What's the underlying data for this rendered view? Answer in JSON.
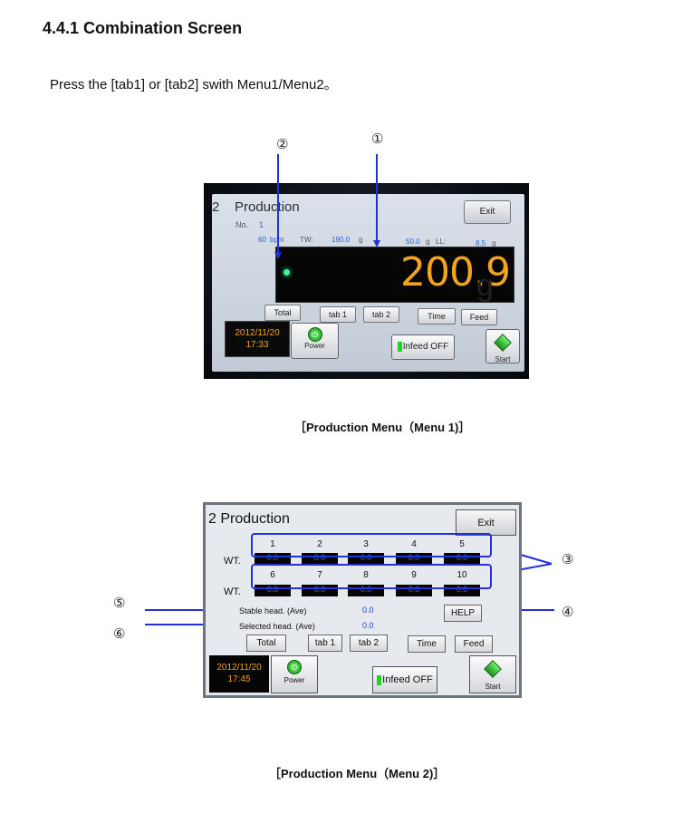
{
  "heading": "4.4.1 Combination Screen",
  "intro": "Press the [tab1] or [tab2] swith Menu1/Menu2。",
  "markers": {
    "m1": "①",
    "m2": "②",
    "m3": "③",
    "m4": "④",
    "m5": "⑤",
    "m6": "⑥"
  },
  "photo": {
    "title_num": "2",
    "title": "Production",
    "exit": "Exit",
    "no_label": "No.",
    "no_value": "1",
    "bpm_value": "60",
    "bpm_unit": "bpm",
    "tw_label": "TW:",
    "tw_value": "190.0",
    "tw_unit": "g",
    "mid_value": "50.0",
    "mid_unit": "g",
    "ll_label": "LL:",
    "ll_value": "8.5",
    "ll_unit": "g",
    "weight": "200.9",
    "weight_unit": "g",
    "buttons": {
      "total": "Total",
      "tab1": "tab 1",
      "tab2": "tab 2",
      "time": "Time",
      "feed": "Feed"
    },
    "date": "2012/11/20",
    "time": "17:33",
    "power": "Power",
    "infeed": "Infeed OFF",
    "start": "Start"
  },
  "caption1": "［Production Menu（Menu 1)］",
  "screen2": {
    "title": "2 Production",
    "exit": "Exit",
    "heads_row1": [
      "1",
      "2",
      "3",
      "4",
      "5"
    ],
    "heads_row2": [
      "6",
      "7",
      "8",
      "9",
      "10"
    ],
    "weights_row1": [
      "0.0",
      "0.0",
      "0.0",
      "0.0",
      "0.0"
    ],
    "weights_row2": [
      "0.0",
      "0.0",
      "0.0",
      "0.0",
      "0.0"
    ],
    "wt_label": "WT.",
    "stable_label": "Stable head. (Ave)",
    "stable_value": "0.0",
    "selected_label": "Selected head. (Ave)",
    "selected_value": "0.0",
    "help": "HELP",
    "buttons": {
      "total": "Total",
      "tab1": "tab 1",
      "tab2": "tab 2",
      "time": "Time",
      "feed": "Feed"
    },
    "date": "2012/11/20",
    "time": "17:45",
    "power": "Power",
    "infeed": "Infeed OFF",
    "start": "Start"
  },
  "caption2": "［Production Menu（Menu 2)］",
  "colors": {
    "arrow": "#1f33d6",
    "display_orange": "#f2a41e",
    "value_blue": "#1d3fd1",
    "green": "#1fd61f"
  }
}
